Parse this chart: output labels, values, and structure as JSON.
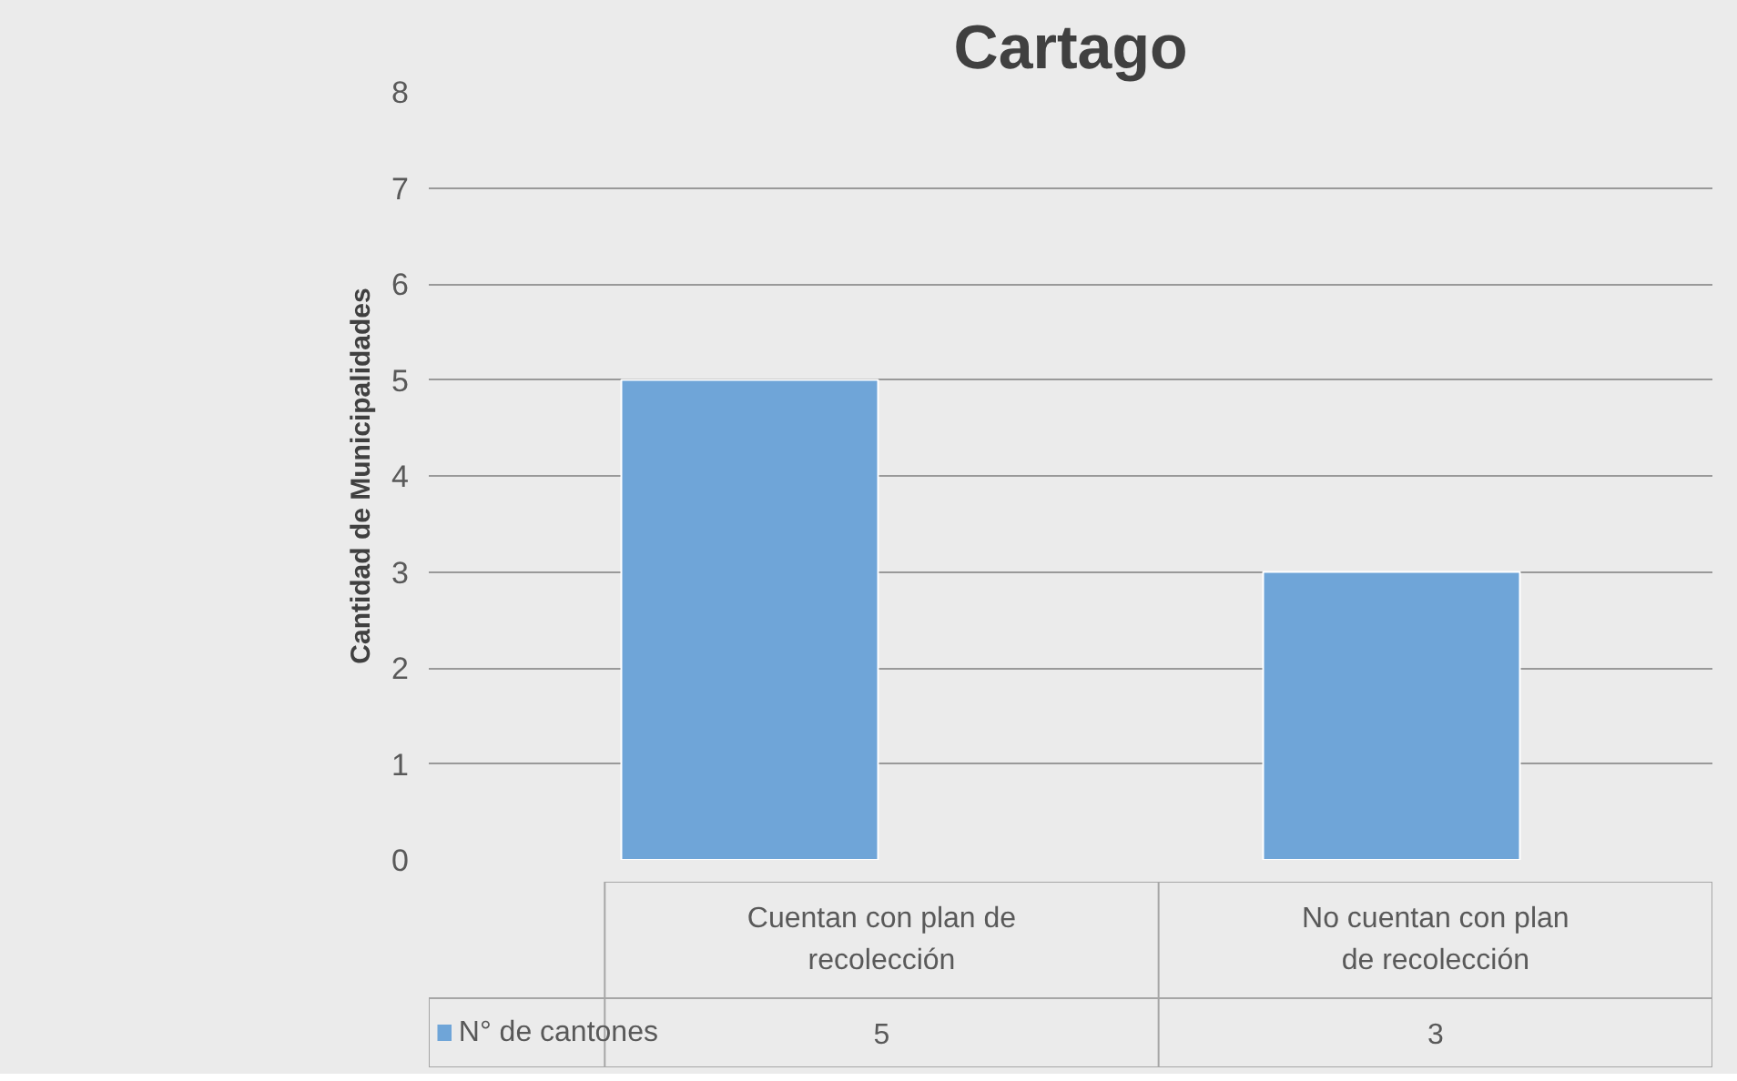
{
  "chart_data": {
    "type": "bar",
    "title": "Cartago",
    "ylabel": "Cantidad de Municipalidades",
    "categories": [
      "Cuentan con plan de recolección",
      "No cuentan con plan de recolección"
    ],
    "series": [
      {
        "name": "N° de cantones",
        "color": "#6fa5d8",
        "values": [
          5,
          3
        ]
      }
    ],
    "ylim": [
      0,
      8
    ],
    "yticks": [
      0,
      1,
      2,
      3,
      4,
      5,
      6,
      7,
      8
    ],
    "grid": "y",
    "legend": "bottom",
    "data_labels": true
  }
}
